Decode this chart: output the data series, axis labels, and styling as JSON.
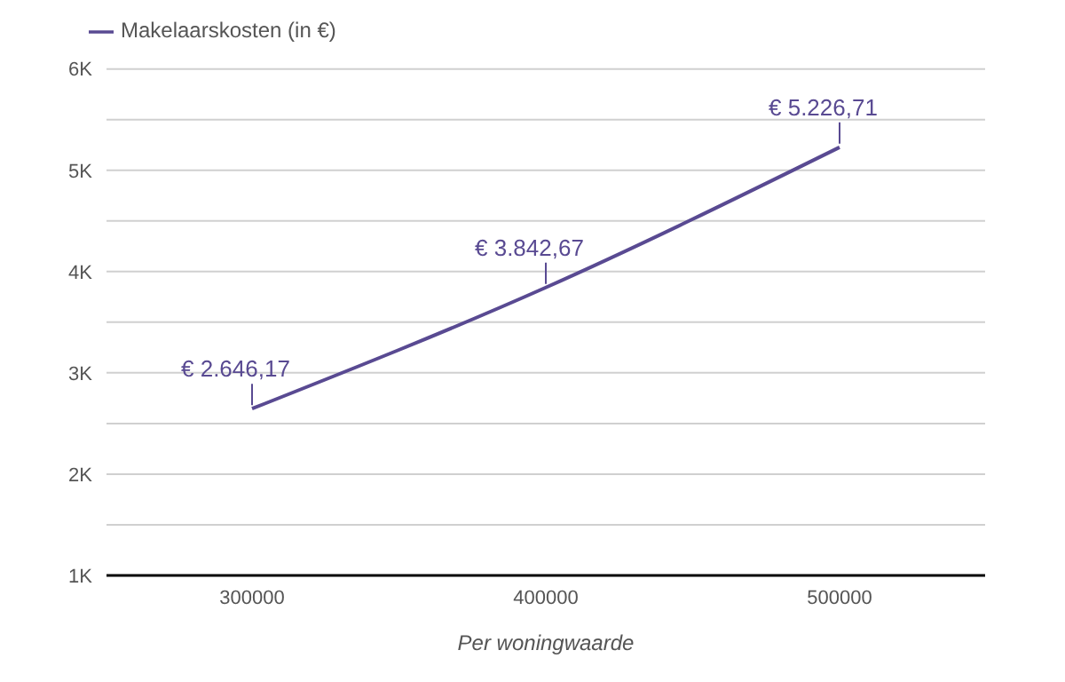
{
  "chart_data": {
    "type": "line",
    "xlabel": "Per woningwaarde",
    "categories": [
      "300000",
      "400000",
      "500000"
    ],
    "series": [
      {
        "name": "Makelaarskosten (in €)",
        "color": "#594a92",
        "values": [
          2646.17,
          3842.67,
          5226.71
        ],
        "value_labels": [
          "€ 2.646,17",
          "€ 3.842,67",
          "€ 5.226,71"
        ]
      }
    ],
    "ylim": [
      1000,
      6000
    ],
    "yticks": [
      {
        "value": 1000,
        "label": "1K"
      },
      {
        "value": 1500,
        "label": null
      },
      {
        "value": 2000,
        "label": "2K"
      },
      {
        "value": 2500,
        "label": null
      },
      {
        "value": 3000,
        "label": "3K"
      },
      {
        "value": 3500,
        "label": null
      },
      {
        "value": 4000,
        "label": "4K"
      },
      {
        "value": 4500,
        "label": null
      },
      {
        "value": 5000,
        "label": "5K"
      },
      {
        "value": 5500,
        "label": null
      },
      {
        "value": 6000,
        "label": "6K"
      }
    ],
    "grid": "y",
    "legend": "top left",
    "marker": "none",
    "line_style": "solid"
  }
}
